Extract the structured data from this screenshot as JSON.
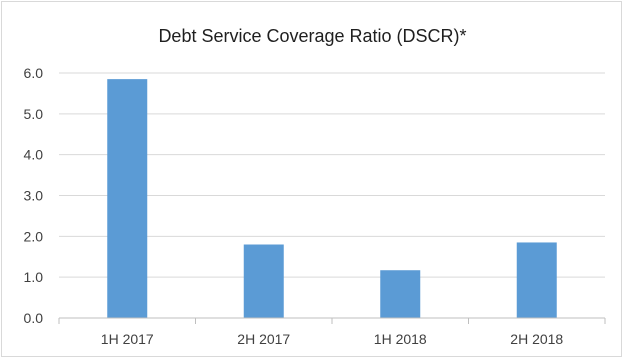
{
  "chart_data": {
    "type": "bar",
    "title": "Debt Service Coverage Ratio (DSCR)*",
    "categories": [
      "1H 2017",
      "2H 2017",
      "1H 2018",
      "2H 2018"
    ],
    "values": [
      5.85,
      1.8,
      1.17,
      1.85
    ],
    "ylim": [
      0,
      6
    ],
    "yticks": [
      "0.0",
      "1.0",
      "2.0",
      "3.0",
      "4.0",
      "5.0",
      "6.0"
    ],
    "grid": true,
    "bar_color": "#5b9bd5",
    "grid_color": "#d9d9d9",
    "xlabel": "",
    "ylabel": ""
  }
}
